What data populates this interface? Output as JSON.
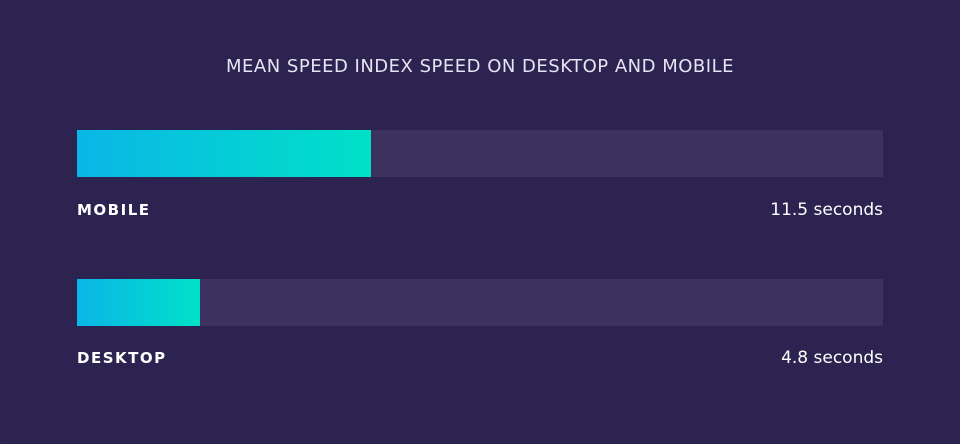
{
  "chart_data": {
    "type": "bar",
    "title": "MEAN SPEED INDEX SPEED ON DESKTOP AND MOBILE",
    "categories": [
      "MOBILE",
      "DESKTOP"
    ],
    "values": [
      11.5,
      4.8
    ],
    "value_labels": [
      "11.5 seconds",
      "4.8 seconds"
    ],
    "unit": "seconds",
    "xlim": [
      0,
      31.5
    ],
    "orientation": "horizontal",
    "grid": false,
    "legend": "none",
    "colors": {
      "background": "#2d2350",
      "track": "#3d325f",
      "bar_start": "#0bb6e6",
      "bar_end": "#00e1c8",
      "text": "#ffffff"
    }
  }
}
